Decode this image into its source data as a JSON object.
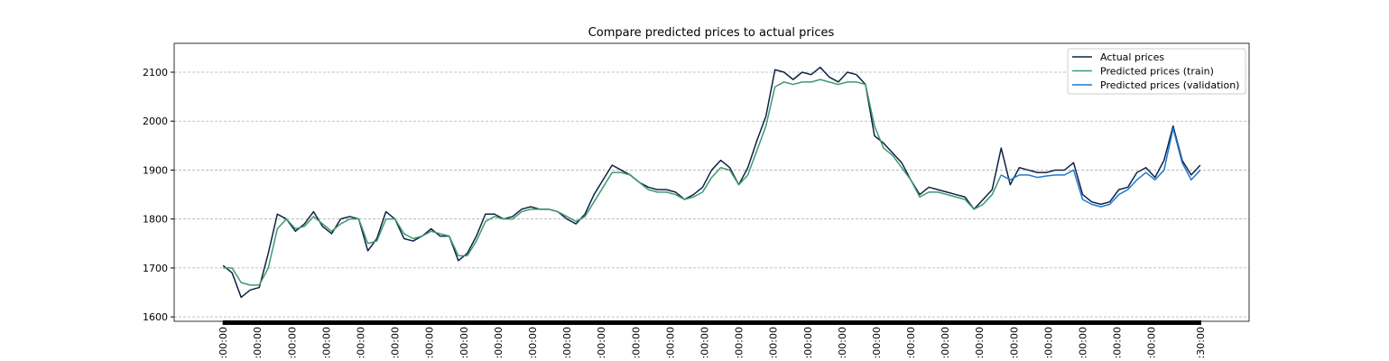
{
  "chart_data": {
    "type": "line",
    "title": "Compare predicted prices to actual prices",
    "series": [
      {
        "name": "Actual prices",
        "color": "#0d2245",
        "values": [
          1705,
          1690,
          1640,
          1655,
          1660,
          1730,
          1810,
          1800,
          1775,
          1790,
          1815,
          1785,
          1770,
          1800,
          1805,
          1800,
          1735,
          1760,
          1815,
          1800,
          1760,
          1755,
          1765,
          1780,
          1765,
          1765,
          1715,
          1730,
          1765,
          1810,
          1810,
          1800,
          1805,
          1820,
          1825,
          1820,
          1820,
          1815,
          1800,
          1790,
          1810,
          1850,
          1880,
          1910,
          1900,
          1890,
          1875,
          1865,
          1860,
          1860,
          1855,
          1840,
          1850,
          1865,
          1900,
          1920,
          1905,
          1870,
          1905,
          1960,
          2010,
          2105,
          2100,
          2085,
          2100,
          2095,
          2110,
          2090,
          2080,
          2100,
          2095,
          2075,
          1970,
          1955,
          1935,
          1915,
          1880,
          1850,
          1865,
          1860,
          1855,
          1850,
          1845,
          1820,
          1840,
          1860,
          1945,
          1870,
          1905,
          1900,
          1895,
          1895,
          1900,
          1900,
          1915,
          1850,
          1835,
          1830,
          1835,
          1860,
          1865,
          1895,
          1905,
          1885,
          1920,
          1990,
          1920,
          1890,
          1910
        ]
      },
      {
        "name": "Predicted prices (train)",
        "color": "#3d9970",
        "values": [
          1700,
          1700,
          1670,
          1665,
          1665,
          1700,
          1780,
          1800,
          1780,
          1785,
          1805,
          1790,
          1775,
          1790,
          1800,
          1800,
          1750,
          1755,
          1800,
          1800,
          1770,
          1760,
          1765,
          1775,
          1770,
          1765,
          1725,
          1725,
          1755,
          1795,
          1805,
          1800,
          1800,
          1815,
          1820,
          1820,
          1820,
          1815,
          1805,
          1795,
          1805,
          1835,
          1865,
          1895,
          1895,
          1890,
          1875,
          1860,
          1855,
          1855,
          1850,
          1840,
          1845,
          1855,
          1885,
          1905,
          1900,
          1870,
          1890,
          1940,
          1990,
          2070,
          2080,
          2075,
          2080,
          2080,
          2085,
          2080,
          2075,
          2080,
          2080,
          2075,
          1990,
          1945,
          1930,
          1905,
          1880,
          1845,
          1855,
          1855,
          1850,
          1845,
          1840,
          1820,
          1830,
          1850,
          1890,
          null,
          null,
          null,
          null,
          null,
          null,
          null,
          null,
          null,
          null,
          null,
          null,
          null,
          null,
          null,
          null,
          null,
          null,
          null,
          null,
          null,
          null
        ]
      },
      {
        "name": "Predicted prices (validation)",
        "color": "#1f78d1",
        "values": [
          null,
          null,
          null,
          null,
          null,
          null,
          null,
          null,
          null,
          null,
          null,
          null,
          null,
          null,
          null,
          null,
          null,
          null,
          null,
          null,
          null,
          null,
          null,
          null,
          null,
          null,
          null,
          null,
          null,
          null,
          null,
          null,
          null,
          null,
          null,
          null,
          null,
          null,
          null,
          null,
          null,
          null,
          null,
          null,
          null,
          null,
          null,
          null,
          null,
          null,
          null,
          null,
          null,
          null,
          null,
          null,
          null,
          null,
          null,
          null,
          null,
          null,
          null,
          null,
          null,
          null,
          null,
          null,
          null,
          null,
          null,
          null,
          null,
          null,
          null,
          null,
          null,
          null,
          null,
          null,
          null,
          null,
          null,
          null,
          null,
          null,
          1890,
          1880,
          1890,
          1890,
          1885,
          1888,
          1890,
          1890,
          1900,
          1840,
          1830,
          1825,
          1830,
          1850,
          1860,
          1880,
          1895,
          1880,
          1900,
          1985,
          1915,
          1880,
          1900
        ]
      }
    ],
    "xlim": [
      -5.4,
      113.4
    ],
    "xticks": [
      {
        "value": 0,
        "label": ":00:00"
      },
      {
        "value": 3.8,
        "label": ":00:00"
      },
      {
        "value": 7.6,
        "label": ":00:00"
      },
      {
        "value": 11.4,
        "label": ":00:00"
      },
      {
        "value": 15.2,
        "label": ":00:00"
      },
      {
        "value": 19,
        "label": ":00:00"
      },
      {
        "value": 22.8,
        "label": ":00:00"
      },
      {
        "value": 26.6,
        "label": ":00:00"
      },
      {
        "value": 30.4,
        "label": ":00:00"
      },
      {
        "value": 34.2,
        "label": ":00:00"
      },
      {
        "value": 38,
        "label": ":00:00"
      },
      {
        "value": 41.8,
        "label": ":00:00"
      },
      {
        "value": 45.6,
        "label": ":00:00"
      },
      {
        "value": 49.4,
        "label": ":00:00"
      },
      {
        "value": 53.2,
        "label": ":00:00"
      },
      {
        "value": 57,
        "label": ":00:00"
      },
      {
        "value": 60.8,
        "label": ":00:00"
      },
      {
        "value": 64.6,
        "label": ":00:00"
      },
      {
        "value": 68.4,
        "label": ":00:00"
      },
      {
        "value": 72.2,
        "label": ":00:00"
      },
      {
        "value": 76,
        "label": ":00:00"
      },
      {
        "value": 79.8,
        "label": ":00:00"
      },
      {
        "value": 83.6,
        "label": ":00:00"
      },
      {
        "value": 87.4,
        "label": ":00:00"
      },
      {
        "value": 91.2,
        "label": ":00:00"
      },
      {
        "value": 95,
        "label": ":00:00"
      },
      {
        "value": 98.8,
        "label": ":00:00"
      },
      {
        "value": 102.6,
        "label": ":00:00"
      },
      {
        "value": 108,
        "label": ":30:00"
      }
    ],
    "ylim": [
      1591,
      2159
    ],
    "yticks": [
      1600,
      1700,
      1800,
      1900,
      2000,
      2100
    ],
    "grid": true,
    "legend": "upper right"
  }
}
